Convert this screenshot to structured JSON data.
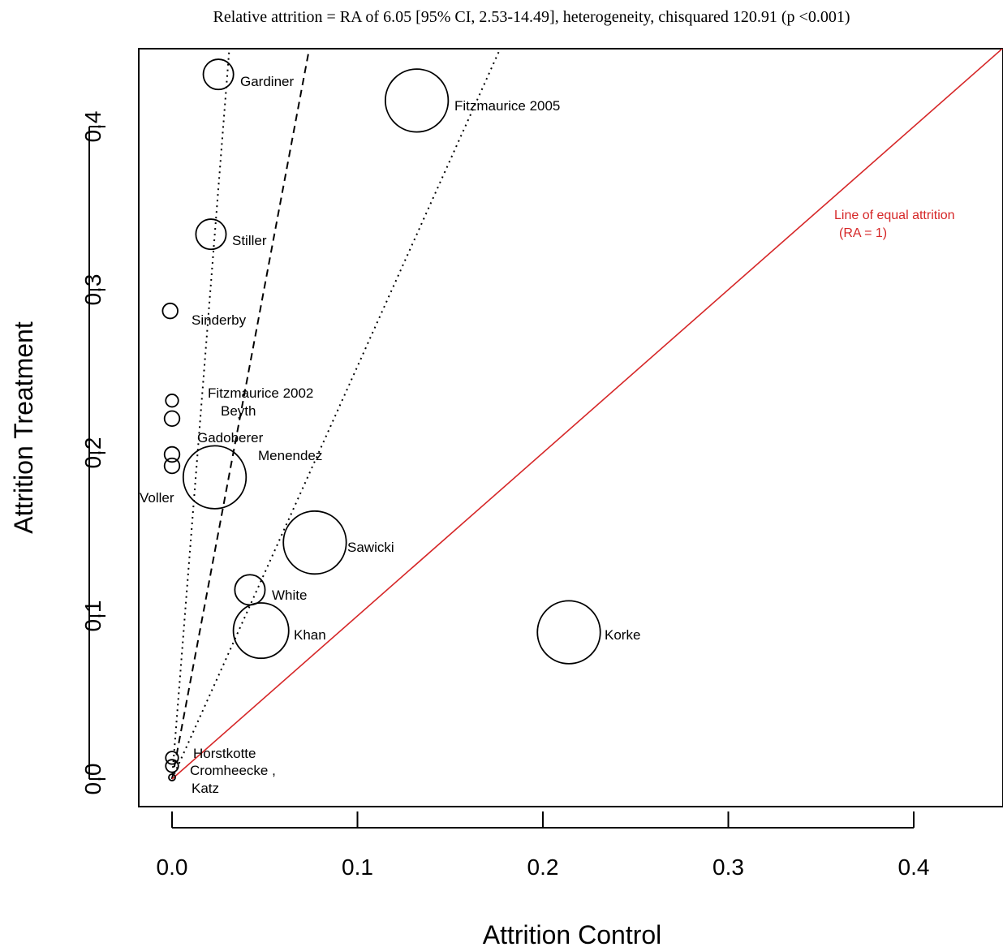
{
  "chart_data": {
    "type": "scatter",
    "title": "Relative attrition = RA of 6.05 [95% CI, 2.53-14.49], heterogeneity, chisquared 120.91 (p <0.001)",
    "xlabel": "Attrition Control",
    "ylabel": "Attrition Treatment",
    "xlim": [
      -0.02,
      0.45
    ],
    "ylim": [
      -0.015,
      0.445
    ],
    "xticks": [
      "0.0",
      "0.1",
      "0.2",
      "0.3",
      "0.4"
    ],
    "yticks": [
      "0.0",
      "0.1",
      "0.2",
      "0.3",
      "0.4"
    ],
    "points": [
      {
        "label": "Gardiner",
        "x": 0.025,
        "y": 0.432,
        "size": 1.2
      },
      {
        "label": "Fitzmaurice 2005",
        "x": 0.132,
        "y": 0.416,
        "size": 2.5
      },
      {
        "label": "Stiller",
        "x": 0.021,
        "y": 0.334,
        "size": 1.2
      },
      {
        "label": "Sinderby",
        "x": -0.001,
        "y": 0.287,
        "size": 0.6
      },
      {
        "label": "Fitzmaurice 2002",
        "x": 0.0,
        "y": 0.232,
        "size": 0.5
      },
      {
        "label": "Beyth",
        "x": 0.0,
        "y": 0.221,
        "size": 0.6
      },
      {
        "label": "Gadoberer",
        "x": 0.0,
        "y": 0.199,
        "size": 0.6
      },
      {
        "label": "Menendez",
        "x": 0.023,
        "y": 0.185,
        "size": 2.5
      },
      {
        "label": "Voller",
        "x": 0.0,
        "y": 0.192,
        "size": 0.6
      },
      {
        "label": "Sawicki",
        "x": 0.077,
        "y": 0.145,
        "size": 2.5
      },
      {
        "label": "White",
        "x": 0.042,
        "y": 0.116,
        "size": 1.2
      },
      {
        "label": "Khan",
        "x": 0.048,
        "y": 0.091,
        "size": 2.2
      },
      {
        "label": "Korke",
        "x": 0.214,
        "y": 0.09,
        "size": 2.5
      },
      {
        "label": "Horstkotte",
        "x": 0.0,
        "y": 0.013,
        "size": 0.5
      },
      {
        "label": "Cromheecke ,",
        "x": 0.0,
        "y": 0.008,
        "size": 0.5
      },
      {
        "label": "Katz",
        "x": 0.0,
        "y": 0.001,
        "size": 0.1
      }
    ],
    "lines": [
      {
        "style": "dashed",
        "slope": 6.05
      },
      {
        "style": "dotted",
        "slope": 2.53
      },
      {
        "style": "dotted",
        "slope": 14.49
      },
      {
        "style": "solid",
        "color": "#d62728",
        "slope": 1,
        "label_line1": "Line of equal attrition",
        "label_line2": "(RA = 1)"
      }
    ],
    "grid": false,
    "legend": "none"
  }
}
